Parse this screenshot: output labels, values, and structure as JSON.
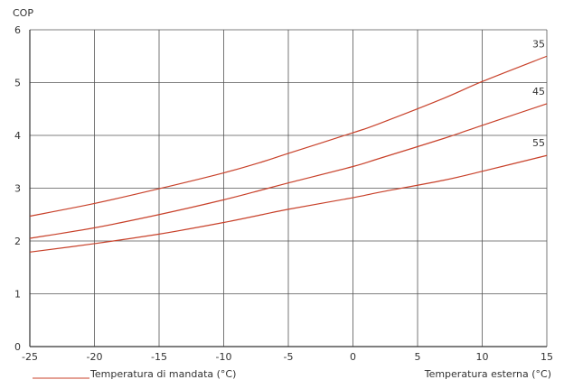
{
  "chart_data": {
    "type": "line",
    "ylabel": "COP",
    "xlabel": "Temperatura esterna (°C)",
    "legend_label": "Temperatura di mandata (°C)",
    "legend_placement": "bottom-left",
    "xlim": [
      -25,
      15
    ],
    "ylim": [
      0,
      6
    ],
    "xticks": [
      -25,
      -20,
      -15,
      -10,
      -5,
      0,
      5,
      10,
      15
    ],
    "yticks": [
      0,
      1,
      2,
      3,
      4,
      5,
      6
    ],
    "grid": true,
    "line_color": "#c8412a",
    "grid_color": "#555555",
    "series": [
      {
        "name": "35",
        "x": [
          -25,
          -20,
          -15,
          -10,
          -7,
          -5,
          0,
          2,
          7,
          10,
          15
        ],
        "y": [
          2.47,
          2.71,
          2.99,
          3.29,
          3.5,
          3.66,
          4.05,
          4.22,
          4.7,
          5.02,
          5.5
        ]
      },
      {
        "name": "45",
        "x": [
          -25,
          -20,
          -15,
          -10,
          -7,
          -5,
          0,
          2,
          7,
          10,
          15
        ],
        "y": [
          2.05,
          2.25,
          2.5,
          2.78,
          2.97,
          3.1,
          3.41,
          3.56,
          3.94,
          4.19,
          4.6
        ]
      },
      {
        "name": "55",
        "x": [
          -25,
          -20,
          -15,
          -10,
          -7,
          -5,
          0,
          2,
          7,
          10,
          15
        ],
        "y": [
          1.79,
          1.95,
          2.13,
          2.35,
          2.5,
          2.6,
          2.82,
          2.92,
          3.15,
          3.32,
          3.62
        ]
      }
    ]
  }
}
